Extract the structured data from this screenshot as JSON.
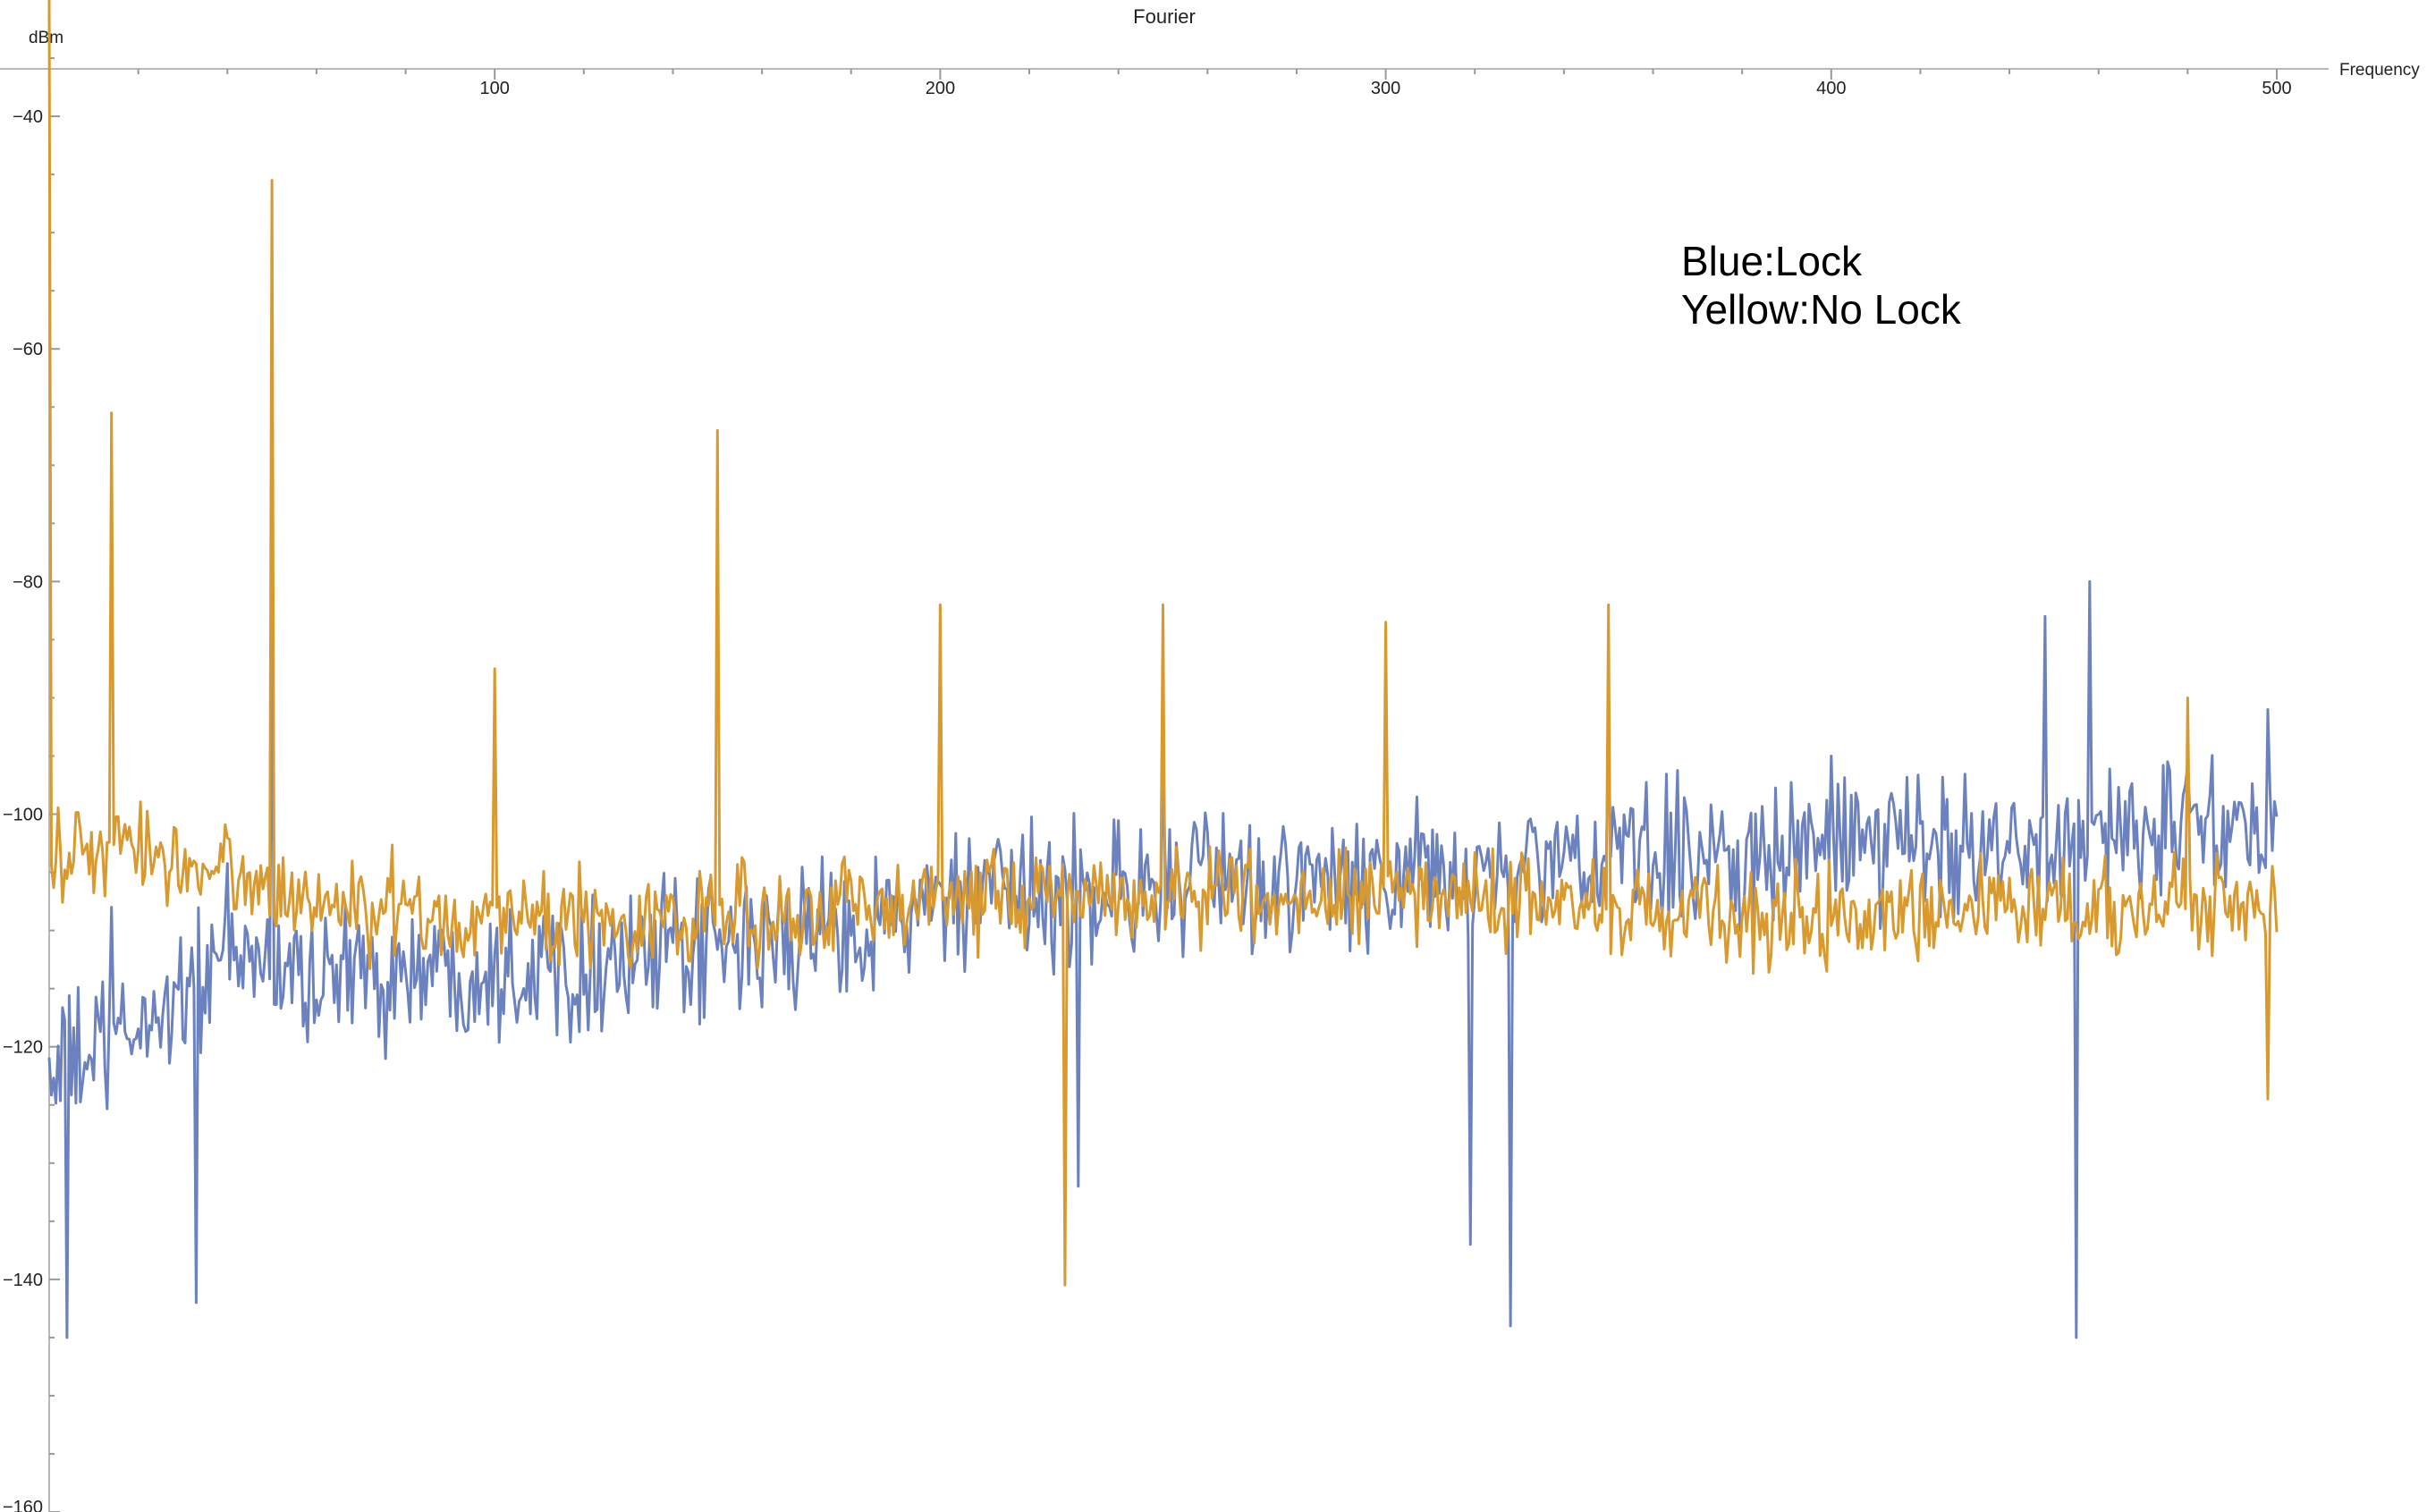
{
  "chart_data": {
    "type": "line",
    "title": "Fourier",
    "xlabel": "Frequency",
    "ylabel": "dBm",
    "xlim": [
      0,
      500
    ],
    "ylim": [
      -160,
      -30
    ],
    "x_ticks": [
      100,
      200,
      300,
      400,
      500
    ],
    "x_tick_labels": [
      "100",
      "200",
      "300",
      "400",
      "500"
    ],
    "y_ticks": [
      -40,
      -60,
      -80,
      -100,
      -120,
      -140,
      -160
    ],
    "y_tick_labels": [
      "-40",
      "-60",
      "-80",
      "-100",
      "-120",
      "-140",
      "-160"
    ],
    "grid": false,
    "annotation": [
      "Blue:Lock",
      "Yellow:No Lock"
    ],
    "series": [
      {
        "color": "#6B82BE",
        "baseline": [
          [
            0,
            -122
          ],
          [
            15,
            -120
          ],
          [
            40,
            -112
          ],
          [
            60,
            -114
          ],
          [
            100,
            -113
          ],
          [
            150,
            -112
          ],
          [
            200,
            -108
          ],
          [
            250,
            -106
          ],
          [
            300,
            -106
          ],
          [
            350,
            -104
          ],
          [
            400,
            -103
          ],
          [
            450,
            -102
          ],
          [
            500,
            -101
          ]
        ],
        "noise_amplitude": 9,
        "peaks": [
          [
            14,
            -108
          ],
          [
            50,
            -82
          ],
          [
            250,
            -96
          ],
          [
            350,
            -93
          ],
          [
            400,
            -95
          ],
          [
            448,
            -83
          ],
          [
            458,
            -80
          ],
          [
            498,
            -91
          ]
        ],
        "dips": [
          [
            4,
            -145
          ],
          [
            33,
            -142
          ],
          [
            231,
            -132
          ],
          [
            319,
            -137
          ],
          [
            328,
            -144
          ],
          [
            455,
            -145
          ]
        ]
      },
      {
        "color": "#D89A2E",
        "baseline": [
          [
            0,
            -104
          ],
          [
            20,
            -103
          ],
          [
            40,
            -105
          ],
          [
            60,
            -108
          ],
          [
            100,
            -109
          ],
          [
            150,
            -109
          ],
          [
            200,
            -107
          ],
          [
            250,
            -107
          ],
          [
            300,
            -107
          ],
          [
            350,
            -108
          ],
          [
            400,
            -109
          ],
          [
            450,
            -108
          ],
          [
            500,
            -108
          ]
        ],
        "noise_amplitude": 6,
        "peaks": [
          [
            0,
            -30
          ],
          [
            14,
            -65.5
          ],
          [
            50,
            -45.5
          ],
          [
            100,
            -87.5
          ],
          [
            150,
            -67
          ],
          [
            200,
            -82
          ],
          [
            250,
            -82
          ],
          [
            300,
            -83.5
          ],
          [
            350,
            -82
          ],
          [
            480,
            -90
          ]
        ],
        "dips": [
          [
            228,
            -140.5
          ],
          [
            498,
            -124.5
          ]
        ]
      }
    ]
  }
}
